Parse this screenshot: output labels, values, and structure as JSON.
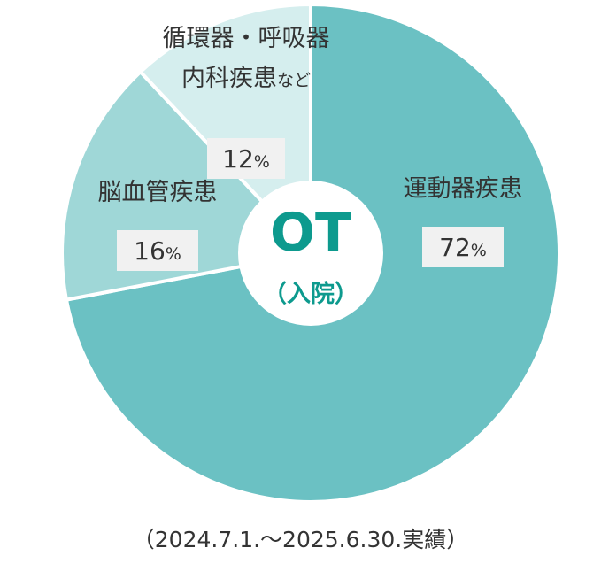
{
  "chart_data": {
    "type": "pie",
    "categories": [
      "運動器疾患",
      "脳血管疾患",
      "循環器・呼吸器 内科疾患など"
    ],
    "values": [
      72,
      16,
      12
    ],
    "unit": "%",
    "center_label": "OT",
    "center_sublabel": "（入院）",
    "colors": [
      "#6bc1c3",
      "#9fd7d7",
      "#d5eeee"
    ],
    "slice_labels": [
      {
        "name_lines": [
          "運動器疾患"
        ],
        "suffix": "",
        "value_text": "72",
        "unit_text": "%"
      },
      {
        "name_lines": [
          "脳血管疾患"
        ],
        "suffix": "",
        "value_text": "16",
        "unit_text": "%"
      },
      {
        "name_lines": [
          "循環器・呼吸器",
          "内科疾患"
        ],
        "suffix": "など",
        "value_text": "12",
        "unit_text": "%"
      }
    ]
  },
  "footnote": "（2024.7.1.～2025.6.30.実績）"
}
